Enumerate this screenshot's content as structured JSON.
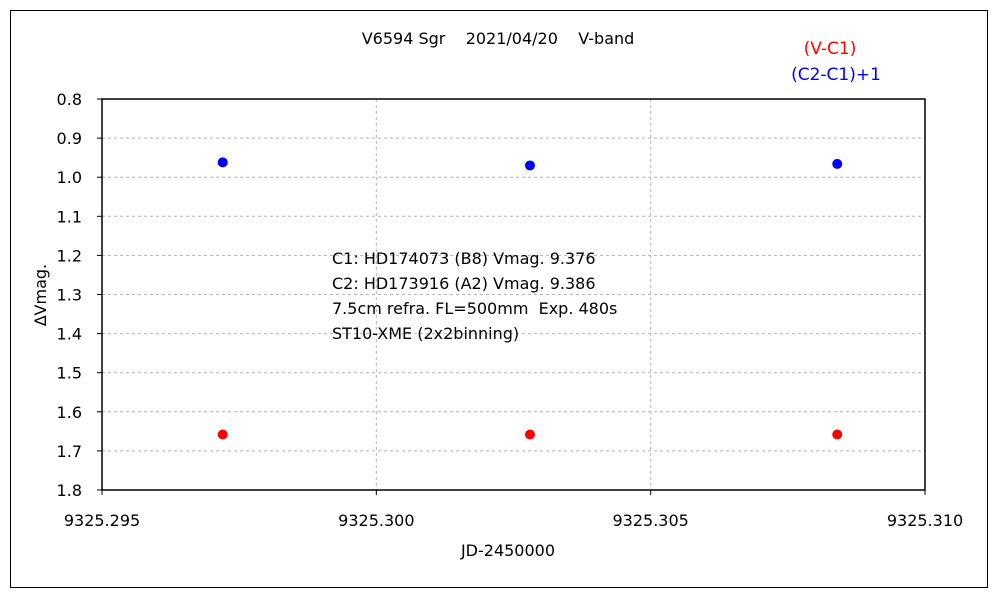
{
  "chart_data": {
    "type": "scatter",
    "title": "V6594 Sgr    2021/04/20    V-band",
    "xlabel": "JD-2450000",
    "ylabel": "∆Vmag.",
    "xlim": [
      9325.295,
      9325.31
    ],
    "ylim": [
      0.8,
      1.8
    ],
    "y_inverted": true,
    "grid": true,
    "x_ticks": [
      "9325.295",
      "9325.300",
      "9325.305",
      "9325.310"
    ],
    "y_ticks": [
      "0.8",
      "0.9",
      "1.0",
      "1.1",
      "1.2",
      "1.3",
      "1.4",
      "1.5",
      "1.6",
      "1.7",
      "1.8"
    ],
    "legend_position": "top-right",
    "series": [
      {
        "name": "(V-C1)",
        "color": "#ff0000",
        "x": [
          9325.2972,
          9325.3028,
          9325.3084
        ],
        "y": [
          1.658,
          1.658,
          1.658
        ]
      },
      {
        "name": "(C2-C1)+1",
        "color": "#0000ff",
        "x": [
          9325.2972,
          9325.3028,
          9325.3084
        ],
        "y": [
          0.962,
          0.97,
          0.966
        ]
      }
    ],
    "annotations": [
      "C1: HD174073 (B8) Vmag. 9.376",
      "C2: HD173916 (A2) Vmag. 9.386",
      "7.5cm refra. FL=500mm  Exp. 480s",
      "ST10-XME (2x2binning)"
    ]
  }
}
